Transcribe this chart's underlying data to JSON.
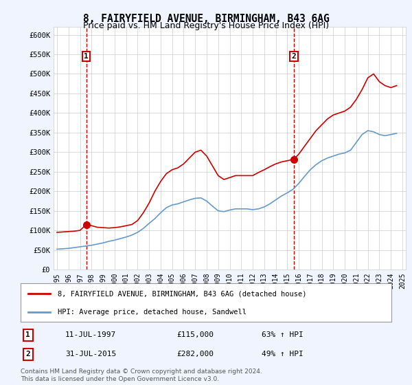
{
  "title": "8, FAIRYFIELD AVENUE, BIRMINGHAM, B43 6AG",
  "subtitle": "Price paid vs. HM Land Registry's House Price Index (HPI)",
  "red_label": "8, FAIRYFIELD AVENUE, BIRMINGHAM, B43 6AG (detached house)",
  "blue_label": "HPI: Average price, detached house, Sandwell",
  "annotation1_label": "1",
  "annotation1_date": "11-JUL-1997",
  "annotation1_price": "£115,000",
  "annotation1_hpi": "63% ↑ HPI",
  "annotation1_year": 1997.54,
  "annotation1_value": 115000,
  "annotation2_label": "2",
  "annotation2_date": "31-JUL-2015",
  "annotation2_price": "£282,000",
  "annotation2_hpi": "49% ↑ HPI",
  "annotation2_year": 2015.58,
  "annotation2_value": 282000,
  "ylim": [
    0,
    620000
  ],
  "yticks": [
    0,
    50000,
    100000,
    150000,
    200000,
    250000,
    300000,
    350000,
    400000,
    450000,
    500000,
    550000,
    600000
  ],
  "ylabel_format": "£{0}K",
  "red_color": "#cc0000",
  "blue_color": "#6699cc",
  "background_color": "#f0f4ff",
  "plot_bg_color": "#ffffff",
  "grid_color": "#cccccc",
  "footnote": "Contains HM Land Registry data © Crown copyright and database right 2024.\nThis data is licensed under the Open Government Licence v3.0.",
  "red_x": [
    1995.0,
    1995.5,
    1996.0,
    1996.5,
    1997.0,
    1997.54,
    1998.0,
    1998.5,
    1999.0,
    1999.5,
    2000.0,
    2000.5,
    2001.0,
    2001.5,
    2002.0,
    2002.5,
    2003.0,
    2003.5,
    2004.0,
    2004.5,
    2005.0,
    2005.5,
    2006.0,
    2006.5,
    2007.0,
    2007.5,
    2008.0,
    2008.5,
    2009.0,
    2009.5,
    2010.0,
    2010.5,
    2011.0,
    2011.5,
    2012.0,
    2012.5,
    2013.0,
    2013.5,
    2014.0,
    2014.5,
    2015.0,
    2015.58,
    2016.0,
    2016.5,
    2017.0,
    2017.5,
    2018.0,
    2018.5,
    2019.0,
    2019.5,
    2020.0,
    2020.5,
    2021.0,
    2021.5,
    2022.0,
    2022.5,
    2023.0,
    2023.5,
    2024.0,
    2024.5
  ],
  "red_y": [
    95000,
    96000,
    97000,
    98000,
    100000,
    115000,
    112000,
    108000,
    107000,
    106000,
    107000,
    109000,
    112000,
    115000,
    125000,
    145000,
    170000,
    200000,
    225000,
    245000,
    255000,
    260000,
    270000,
    285000,
    300000,
    305000,
    290000,
    265000,
    240000,
    230000,
    235000,
    240000,
    240000,
    240000,
    240000,
    248000,
    255000,
    263000,
    270000,
    275000,
    278000,
    282000,
    295000,
    315000,
    335000,
    355000,
    370000,
    385000,
    395000,
    400000,
    405000,
    415000,
    435000,
    460000,
    490000,
    500000,
    480000,
    470000,
    465000,
    470000
  ],
  "blue_x": [
    1995.0,
    1995.5,
    1996.0,
    1996.5,
    1997.0,
    1997.5,
    1998.0,
    1998.5,
    1999.0,
    1999.5,
    2000.0,
    2000.5,
    2001.0,
    2001.5,
    2002.0,
    2002.5,
    2003.0,
    2003.5,
    2004.0,
    2004.5,
    2005.0,
    2005.5,
    2006.0,
    2006.5,
    2007.0,
    2007.5,
    2008.0,
    2008.5,
    2009.0,
    2009.5,
    2010.0,
    2010.5,
    2011.0,
    2011.5,
    2012.0,
    2012.5,
    2013.0,
    2013.5,
    2014.0,
    2014.5,
    2015.0,
    2015.5,
    2016.0,
    2016.5,
    2017.0,
    2017.5,
    2018.0,
    2018.5,
    2019.0,
    2019.5,
    2020.0,
    2020.5,
    2021.0,
    2021.5,
    2022.0,
    2022.5,
    2023.0,
    2023.5,
    2024.0,
    2024.5
  ],
  "blue_y": [
    52000,
    53000,
    54000,
    56000,
    58000,
    60000,
    62000,
    65000,
    68000,
    72000,
    75000,
    79000,
    83000,
    88000,
    95000,
    105000,
    118000,
    130000,
    145000,
    158000,
    165000,
    168000,
    173000,
    178000,
    182000,
    183000,
    175000,
    162000,
    150000,
    148000,
    152000,
    155000,
    155000,
    155000,
    153000,
    155000,
    160000,
    168000,
    178000,
    188000,
    196000,
    205000,
    220000,
    238000,
    255000,
    268000,
    278000,
    285000,
    290000,
    295000,
    298000,
    305000,
    325000,
    345000,
    355000,
    352000,
    345000,
    342000,
    345000,
    348000
  ],
  "xticks": [
    1995,
    1996,
    1997,
    1998,
    1999,
    2000,
    2001,
    2002,
    2003,
    2004,
    2005,
    2006,
    2007,
    2008,
    2009,
    2010,
    2011,
    2012,
    2013,
    2014,
    2015,
    2016,
    2017,
    2018,
    2019,
    2020,
    2021,
    2022,
    2023,
    2024,
    2025
  ]
}
